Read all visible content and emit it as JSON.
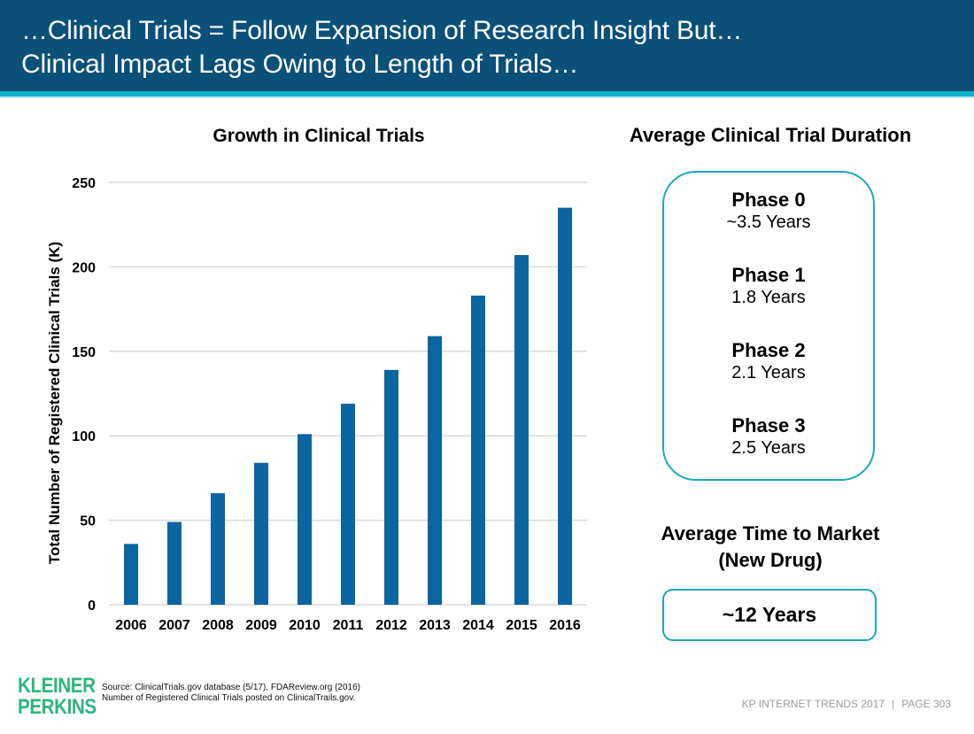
{
  "header": {
    "title_line1": "…Clinical Trials = Follow Expansion of Research Insight But…",
    "title_line2": "Clinical Impact Lags Owing to Length of Trials…"
  },
  "colors": {
    "header_bg": "#0b5079",
    "accent_stripe": "#12b0c9",
    "bar": "#0a65a0",
    "box_border": "#1ba8c0",
    "logo": "#2fb57f",
    "gridline": "#d9d9d9"
  },
  "chart_data": {
    "type": "bar",
    "title": "Growth in Clinical Trials",
    "xlabel": "",
    "ylabel": "Total Number of Registered Clinical Trials (K)",
    "categories": [
      "2006",
      "2007",
      "2008",
      "2009",
      "2010",
      "2011",
      "2012",
      "2013",
      "2014",
      "2015",
      "2016"
    ],
    "values": [
      36,
      49,
      66,
      84,
      101,
      119,
      139,
      159,
      183,
      207,
      235
    ],
    "ylim": [
      0,
      250
    ],
    "yticks": [
      0,
      50,
      100,
      150,
      200,
      250
    ],
    "grid": true,
    "legend": "none"
  },
  "durations": {
    "title": "Average Clinical Trial Duration",
    "phases": [
      {
        "name": "Phase 0",
        "duration": "~3.5 Years"
      },
      {
        "name": "Phase 1",
        "duration": "1.8 Years"
      },
      {
        "name": "Phase 2",
        "duration": "2.1 Years"
      },
      {
        "name": "Phase 3",
        "duration": "2.5 Years"
      }
    ]
  },
  "time_to_market": {
    "title_line1": "Average Time to Market",
    "title_line2": "(New Drug)",
    "value": "~12 Years"
  },
  "footer": {
    "logo_line1": "KLEINER",
    "logo_line2": "PERKINS",
    "source_line1": "Source: ClinicalTrials.gov database (5/17), FDAReview.org (2016)",
    "source_line2": "Number of Registered Clinical Trials posted on ClinicalTrails.gov.",
    "report": "KP INTERNET TRENDS 2017",
    "separator": "|",
    "page": "PAGE 303"
  }
}
